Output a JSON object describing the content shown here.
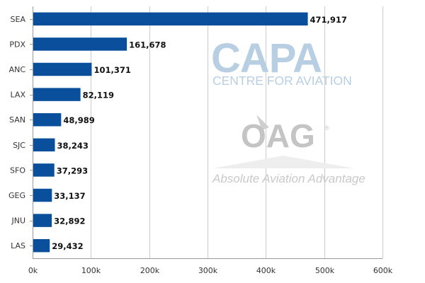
{
  "chart_data": {
    "type": "bar",
    "orientation": "horizontal",
    "categories": [
      "SEA",
      "PDX",
      "ANC",
      "LAX",
      "SAN",
      "SJC",
      "SFO",
      "GEG",
      "JNU",
      "LAS"
    ],
    "values": [
      471917,
      161678,
      101371,
      82119,
      48989,
      38243,
      37293,
      33137,
      32892,
      29432
    ],
    "value_labels": [
      "471,917",
      "161,678",
      "101,371",
      "82,119",
      "48,989",
      "38,243",
      "37,293",
      "33,137",
      "32,892",
      "29,432"
    ],
    "x_ticks": [
      0,
      100000,
      200000,
      300000,
      400000,
      500000,
      600000
    ],
    "x_tick_labels": [
      "0k",
      "100k",
      "200k",
      "300k",
      "400k",
      "500k",
      "600k"
    ],
    "xlim": [
      0,
      600000
    ],
    "title": "",
    "xlabel": "",
    "ylabel": "",
    "grid": true,
    "legend": "none",
    "bar_color": "#0a4f9c",
    "grid_color": "#cccccc"
  },
  "watermarks": {
    "capa_logo": "CAPA",
    "capa_subtitle": "CENTRE FOR AVIATION",
    "oag_logo": "OAG",
    "oag_tagline": "Absolute Aviation Advantage"
  }
}
